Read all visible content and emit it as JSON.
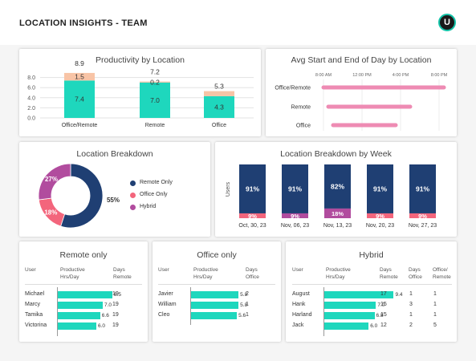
{
  "header": {
    "title": "LOCATION INSIGHTS - TEAM",
    "logo_letter": "U"
  },
  "colors": {
    "teal": "#1ed7bd",
    "peach": "#f8c4a6",
    "navy": "#1f3f73",
    "pink": "#f3657c",
    "purple": "#b14c9e",
    "bar_pink": "#ee8bb3"
  },
  "productivity": {
    "title": "Productivity by Location",
    "y_ticks": [
      "0.0",
      "2.0",
      "4.0",
      "6.0",
      "8.0"
    ],
    "locations": [
      {
        "name": "Office/Remote",
        "base": 7.4,
        "top": 1.5,
        "total": 8.9,
        "base_label": "7.4",
        "top_label": "1.5",
        "total_label": "8.9"
      },
      {
        "name": "Remote",
        "base": 7.0,
        "top": 0.2,
        "total": 7.2,
        "base_label": "7.0",
        "top_label": "0.2",
        "total_label": "7.2"
      },
      {
        "name": "Office",
        "base": 4.3,
        "top": 1.0,
        "total": 5.3,
        "base_label": "4.3",
        "top_label": "",
        "total_label": "5.3"
      }
    ]
  },
  "avg_day": {
    "title": "Avg Start and End of Day by Location",
    "time_ticks": [
      "8:00 AM",
      "12:00 PM",
      "4:00 PM",
      "8:00 PM"
    ],
    "rows": [
      {
        "label": "Office/Remote",
        "start_hr": 8.0,
        "end_hr": 20.5
      },
      {
        "label": "Remote",
        "start_hr": 8.5,
        "end_hr": 17.0
      },
      {
        "label": "Office",
        "start_hr": 9.0,
        "end_hr": 15.5
      }
    ]
  },
  "breakdown": {
    "title": "Location Breakdown",
    "slices": [
      {
        "name": "Remote Only",
        "value": 55,
        "label": "55%"
      },
      {
        "name": "Office Only",
        "value": 18,
        "label": "18%"
      },
      {
        "name": "Hybrid",
        "value": 27,
        "label": "27%"
      }
    ]
  },
  "breakdown_week": {
    "title": "Location Breakdown by Week",
    "y_label": "Users",
    "weeks": [
      {
        "date": "Oct, 30, 23",
        "main": 91,
        "main_label": "91%",
        "other": 9,
        "other_label": "9%",
        "other_type": "office"
      },
      {
        "date": "Nov, 06, 23",
        "main": 91,
        "main_label": "91%",
        "other": 9,
        "other_label": "9%",
        "other_type": "hybrid"
      },
      {
        "date": "Nov, 13, 23",
        "main": 82,
        "main_label": "82%",
        "other": 18,
        "other_label": "18%",
        "other_type": "hybrid"
      },
      {
        "date": "Nov, 20, 23",
        "main": 91,
        "main_label": "91%",
        "other": 9,
        "other_label": "9%",
        "other_type": "office"
      },
      {
        "date": "Nov, 27, 23",
        "main": 91,
        "main_label": "91%",
        "other": 9,
        "other_label": "9%",
        "other_type": "office"
      }
    ]
  },
  "remote_table": {
    "title": "Remote only",
    "headers": {
      "user": "User",
      "hrs": "Productive Hrs/Day",
      "days": "Days Remote"
    },
    "rows": [
      {
        "user": "Michael",
        "hrs": 8.5,
        "hrs_label": "8.5",
        "days": "19"
      },
      {
        "user": "Marcy",
        "hrs": 7.0,
        "hrs_label": "7.0",
        "days": "19"
      },
      {
        "user": "Tamika",
        "hrs": 6.6,
        "hrs_label": "6.6",
        "days": "19"
      },
      {
        "user": "Victorina",
        "hrs": 6.0,
        "hrs_label": "6.0",
        "days": "19"
      }
    ]
  },
  "office_table": {
    "title": "Office only",
    "headers": {
      "user": "User",
      "hrs": "Productive Hrs/Day",
      "days": "Days Office"
    },
    "rows": [
      {
        "user": "Javier",
        "hrs": 5.8,
        "hrs_label": "5.8",
        "days": "2"
      },
      {
        "user": "William",
        "hrs": 5.8,
        "hrs_label": "5.8",
        "days": "1"
      },
      {
        "user": "Cleo",
        "hrs": 5.6,
        "hrs_label": "5.6",
        "days": "1"
      }
    ]
  },
  "hybrid_table": {
    "title": "Hybrid",
    "headers": {
      "user": "User",
      "hrs": "Productive Hrs/Day",
      "days_remote": "Days Remote",
      "days_office": "Days Office",
      "ratio": "Office/ Remote"
    },
    "rows": [
      {
        "user": "August",
        "hrs": 9.4,
        "hrs_label": "9.4",
        "days_remote": "17",
        "days_office": "1",
        "ratio": "1"
      },
      {
        "user": "Hank",
        "hrs": 7.0,
        "hrs_label": "7.0",
        "days_remote": "15",
        "days_office": "3",
        "ratio": "1"
      },
      {
        "user": "Harland",
        "hrs": 6.8,
        "hrs_label": "6.8",
        "days_remote": "15",
        "days_office": "1",
        "ratio": "1"
      },
      {
        "user": "Jack",
        "hrs": 6.0,
        "hrs_label": "6.0",
        "days_remote": "12",
        "days_office": "2",
        "ratio": "5"
      }
    ]
  }
}
